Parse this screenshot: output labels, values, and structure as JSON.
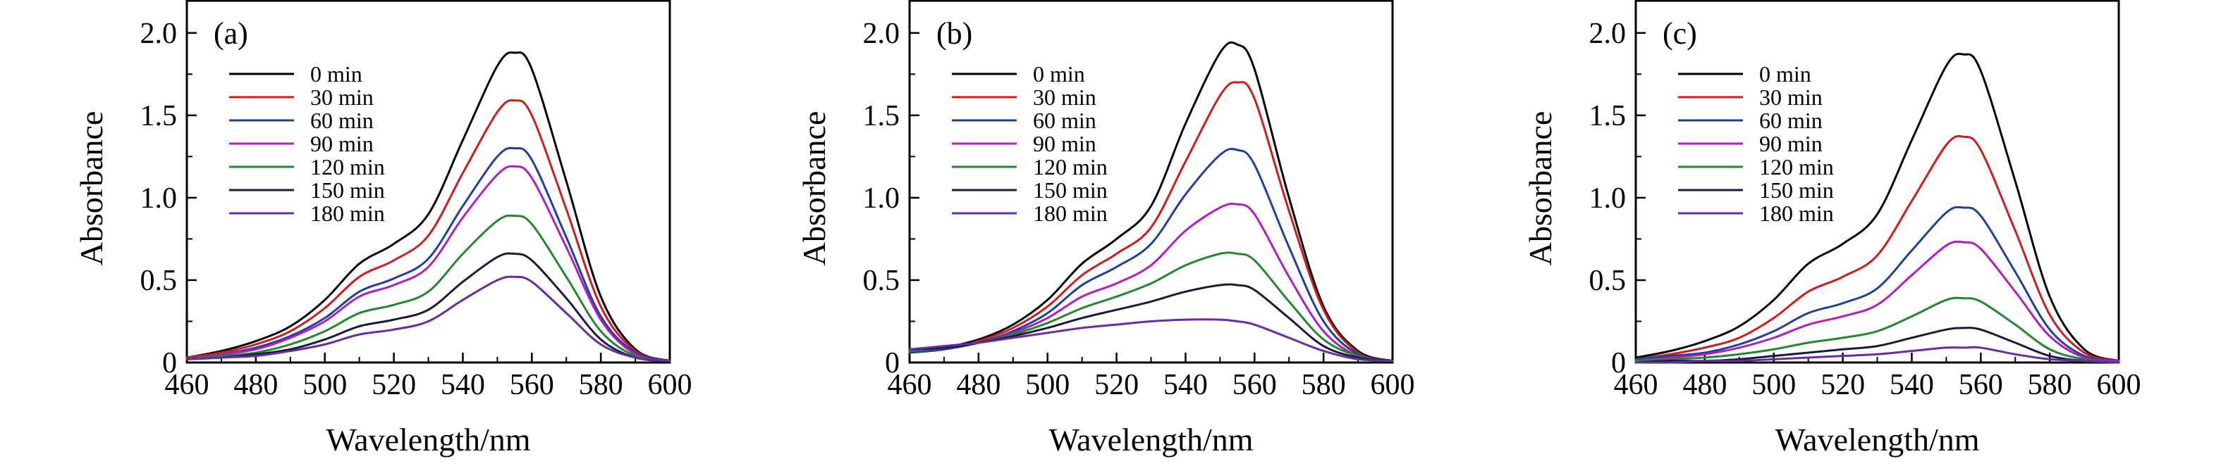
{
  "chart_data": [
    {
      "type": "line",
      "panel_label": "(a)",
      "xlabel": "Wavelength/nm",
      "ylabel": "Absorbance",
      "xlim": [
        460,
        600
      ],
      "ylim": [
        0,
        2.2
      ],
      "xticks": [
        460,
        480,
        500,
        520,
        540,
        560,
        580,
        600
      ],
      "yticks": [
        0,
        0.5,
        1.0,
        1.5,
        2.0
      ],
      "ytick_labels": [
        "0",
        "0.5",
        "1.0",
        "1.5",
        "2.0"
      ],
      "grid": false,
      "legend_position": "top-left",
      "x": [
        460,
        470,
        480,
        490,
        500,
        510,
        520,
        530,
        540,
        550,
        555,
        560,
        570,
        580,
        590,
        600
      ],
      "series": [
        {
          "name": "0 min",
          "color": "#000000",
          "values": [
            0.03,
            0.07,
            0.13,
            0.22,
            0.38,
            0.6,
            0.72,
            0.9,
            1.35,
            1.8,
            1.88,
            1.78,
            1.1,
            0.4,
            0.08,
            0.01
          ]
        },
        {
          "name": "30 min",
          "color": "#d11a1a",
          "values": [
            0.03,
            0.06,
            0.11,
            0.19,
            0.33,
            0.52,
            0.62,
            0.77,
            1.15,
            1.52,
            1.59,
            1.5,
            0.93,
            0.34,
            0.07,
            0.01
          ]
        },
        {
          "name": "60 min",
          "color": "#1f3fa0",
          "values": [
            0.02,
            0.05,
            0.09,
            0.16,
            0.27,
            0.43,
            0.51,
            0.63,
            0.95,
            1.25,
            1.3,
            1.23,
            0.76,
            0.28,
            0.06,
            0.01
          ]
        },
        {
          "name": "90 min",
          "color": "#b21cc0",
          "values": [
            0.02,
            0.05,
            0.08,
            0.15,
            0.25,
            0.4,
            0.47,
            0.58,
            0.88,
            1.14,
            1.19,
            1.12,
            0.7,
            0.26,
            0.05,
            0.01
          ]
        },
        {
          "name": "120 min",
          "color": "#1f8a2a",
          "values": [
            0.02,
            0.04,
            0.06,
            0.11,
            0.19,
            0.3,
            0.35,
            0.43,
            0.66,
            0.86,
            0.89,
            0.84,
            0.52,
            0.19,
            0.04,
            0.01
          ]
        },
        {
          "name": "150 min",
          "color": "#1a1a3a",
          "values": [
            0.02,
            0.03,
            0.05,
            0.08,
            0.14,
            0.22,
            0.26,
            0.32,
            0.49,
            0.64,
            0.66,
            0.62,
            0.39,
            0.14,
            0.03,
            0.01
          ]
        },
        {
          "name": "180 min",
          "color": "#6a2aa8",
          "values": [
            0.02,
            0.03,
            0.04,
            0.07,
            0.11,
            0.17,
            0.2,
            0.25,
            0.38,
            0.5,
            0.52,
            0.49,
            0.3,
            0.11,
            0.03,
            0.01
          ]
        }
      ]
    },
    {
      "type": "line",
      "panel_label": "(b)",
      "xlabel": "Wavelength/nm",
      "ylabel": "Absorbance",
      "xlim": [
        460,
        600
      ],
      "ylim": [
        0,
        2.2
      ],
      "xticks": [
        460,
        480,
        500,
        520,
        540,
        560,
        580,
        600
      ],
      "yticks": [
        0,
        0.5,
        1.0,
        1.5,
        2.0
      ],
      "ytick_labels": [
        "0",
        "0.5",
        "1.0",
        "1.5",
        "2.0"
      ],
      "grid": false,
      "legend_position": "top-left",
      "x": [
        460,
        470,
        480,
        490,
        500,
        510,
        520,
        530,
        540,
        550,
        555,
        560,
        570,
        580,
        590,
        600
      ],
      "series": [
        {
          "name": "0 min",
          "color": "#000000",
          "values": [
            0.06,
            0.09,
            0.14,
            0.23,
            0.38,
            0.6,
            0.75,
            0.95,
            1.45,
            1.88,
            1.93,
            1.78,
            1.0,
            0.34,
            0.07,
            0.01
          ]
        },
        {
          "name": "30 min",
          "color": "#d11a1a",
          "values": [
            0.06,
            0.08,
            0.13,
            0.21,
            0.34,
            0.53,
            0.66,
            0.82,
            1.22,
            1.62,
            1.7,
            1.6,
            0.92,
            0.32,
            0.06,
            0.01
          ]
        },
        {
          "name": "60 min",
          "color": "#1f3fa0",
          "values": [
            0.06,
            0.08,
            0.12,
            0.19,
            0.3,
            0.47,
            0.58,
            0.72,
            1.02,
            1.26,
            1.29,
            1.2,
            0.7,
            0.25,
            0.05,
            0.01
          ]
        },
        {
          "name": "90 min",
          "color": "#b21cc0",
          "values": [
            0.07,
            0.09,
            0.12,
            0.18,
            0.27,
            0.4,
            0.48,
            0.59,
            0.8,
            0.94,
            0.96,
            0.9,
            0.52,
            0.19,
            0.04,
            0.01
          ]
        },
        {
          "name": "120 min",
          "color": "#1f8a2a",
          "values": [
            0.07,
            0.09,
            0.12,
            0.17,
            0.24,
            0.33,
            0.4,
            0.48,
            0.59,
            0.66,
            0.66,
            0.62,
            0.37,
            0.14,
            0.04,
            0.01
          ]
        },
        {
          "name": "150 min",
          "color": "#1a1a3a",
          "values": [
            0.08,
            0.09,
            0.12,
            0.16,
            0.21,
            0.27,
            0.32,
            0.37,
            0.43,
            0.47,
            0.47,
            0.44,
            0.27,
            0.1,
            0.03,
            0.01
          ]
        },
        {
          "name": "180 min",
          "color": "#6a2aa8",
          "values": [
            0.08,
            0.1,
            0.12,
            0.15,
            0.18,
            0.21,
            0.23,
            0.25,
            0.26,
            0.26,
            0.25,
            0.23,
            0.15,
            0.07,
            0.02,
            0.01
          ]
        }
      ]
    },
    {
      "type": "line",
      "panel_label": "(c)",
      "xlabel": "Wavelength/nm",
      "ylabel": "Absorbance",
      "xlim": [
        460,
        600
      ],
      "ylim": [
        0,
        2.2
      ],
      "xticks": [
        460,
        480,
        500,
        520,
        540,
        560,
        580,
        600
      ],
      "yticks": [
        0,
        0.5,
        1.0,
        1.5,
        2.0
      ],
      "ytick_labels": [
        "0",
        "0.5",
        "1.0",
        "1.5",
        "2.0"
      ],
      "grid": false,
      "legend_position": "top-left",
      "x": [
        460,
        470,
        480,
        490,
        500,
        510,
        520,
        530,
        540,
        550,
        555,
        560,
        570,
        580,
        590,
        600
      ],
      "series": [
        {
          "name": "0 min",
          "color": "#000000",
          "values": [
            0.03,
            0.07,
            0.13,
            0.22,
            0.38,
            0.6,
            0.72,
            0.9,
            1.35,
            1.8,
            1.87,
            1.77,
            1.1,
            0.4,
            0.08,
            0.01
          ]
        },
        {
          "name": "30 min",
          "color": "#d11a1a",
          "values": [
            0.02,
            0.05,
            0.09,
            0.15,
            0.27,
            0.43,
            0.52,
            0.65,
            0.98,
            1.32,
            1.37,
            1.29,
            0.8,
            0.29,
            0.06,
            0.01
          ]
        },
        {
          "name": "60 min",
          "color": "#1f3fa0",
          "values": [
            0.02,
            0.04,
            0.06,
            0.11,
            0.19,
            0.3,
            0.36,
            0.45,
            0.68,
            0.91,
            0.94,
            0.89,
            0.55,
            0.2,
            0.04,
            0.01
          ]
        },
        {
          "name": "90 min",
          "color": "#b21cc0",
          "values": [
            0.01,
            0.03,
            0.05,
            0.09,
            0.15,
            0.23,
            0.28,
            0.35,
            0.53,
            0.71,
            0.73,
            0.69,
            0.43,
            0.16,
            0.03,
            0.01
          ]
        },
        {
          "name": "120 min",
          "color": "#1f8a2a",
          "values": [
            0.01,
            0.02,
            0.03,
            0.05,
            0.08,
            0.12,
            0.15,
            0.19,
            0.28,
            0.38,
            0.39,
            0.37,
            0.23,
            0.08,
            0.02,
            0.0
          ]
        },
        {
          "name": "150 min",
          "color": "#1a1a3a",
          "values": [
            0.0,
            0.01,
            0.01,
            0.02,
            0.04,
            0.06,
            0.08,
            0.1,
            0.15,
            0.2,
            0.21,
            0.2,
            0.12,
            0.04,
            0.01,
            0.0
          ]
        },
        {
          "name": "180 min",
          "color": "#6a2aa8",
          "values": [
            0.0,
            0.0,
            0.01,
            0.01,
            0.02,
            0.03,
            0.04,
            0.05,
            0.07,
            0.09,
            0.09,
            0.09,
            0.05,
            0.02,
            0.01,
            0.0
          ]
        }
      ]
    }
  ]
}
